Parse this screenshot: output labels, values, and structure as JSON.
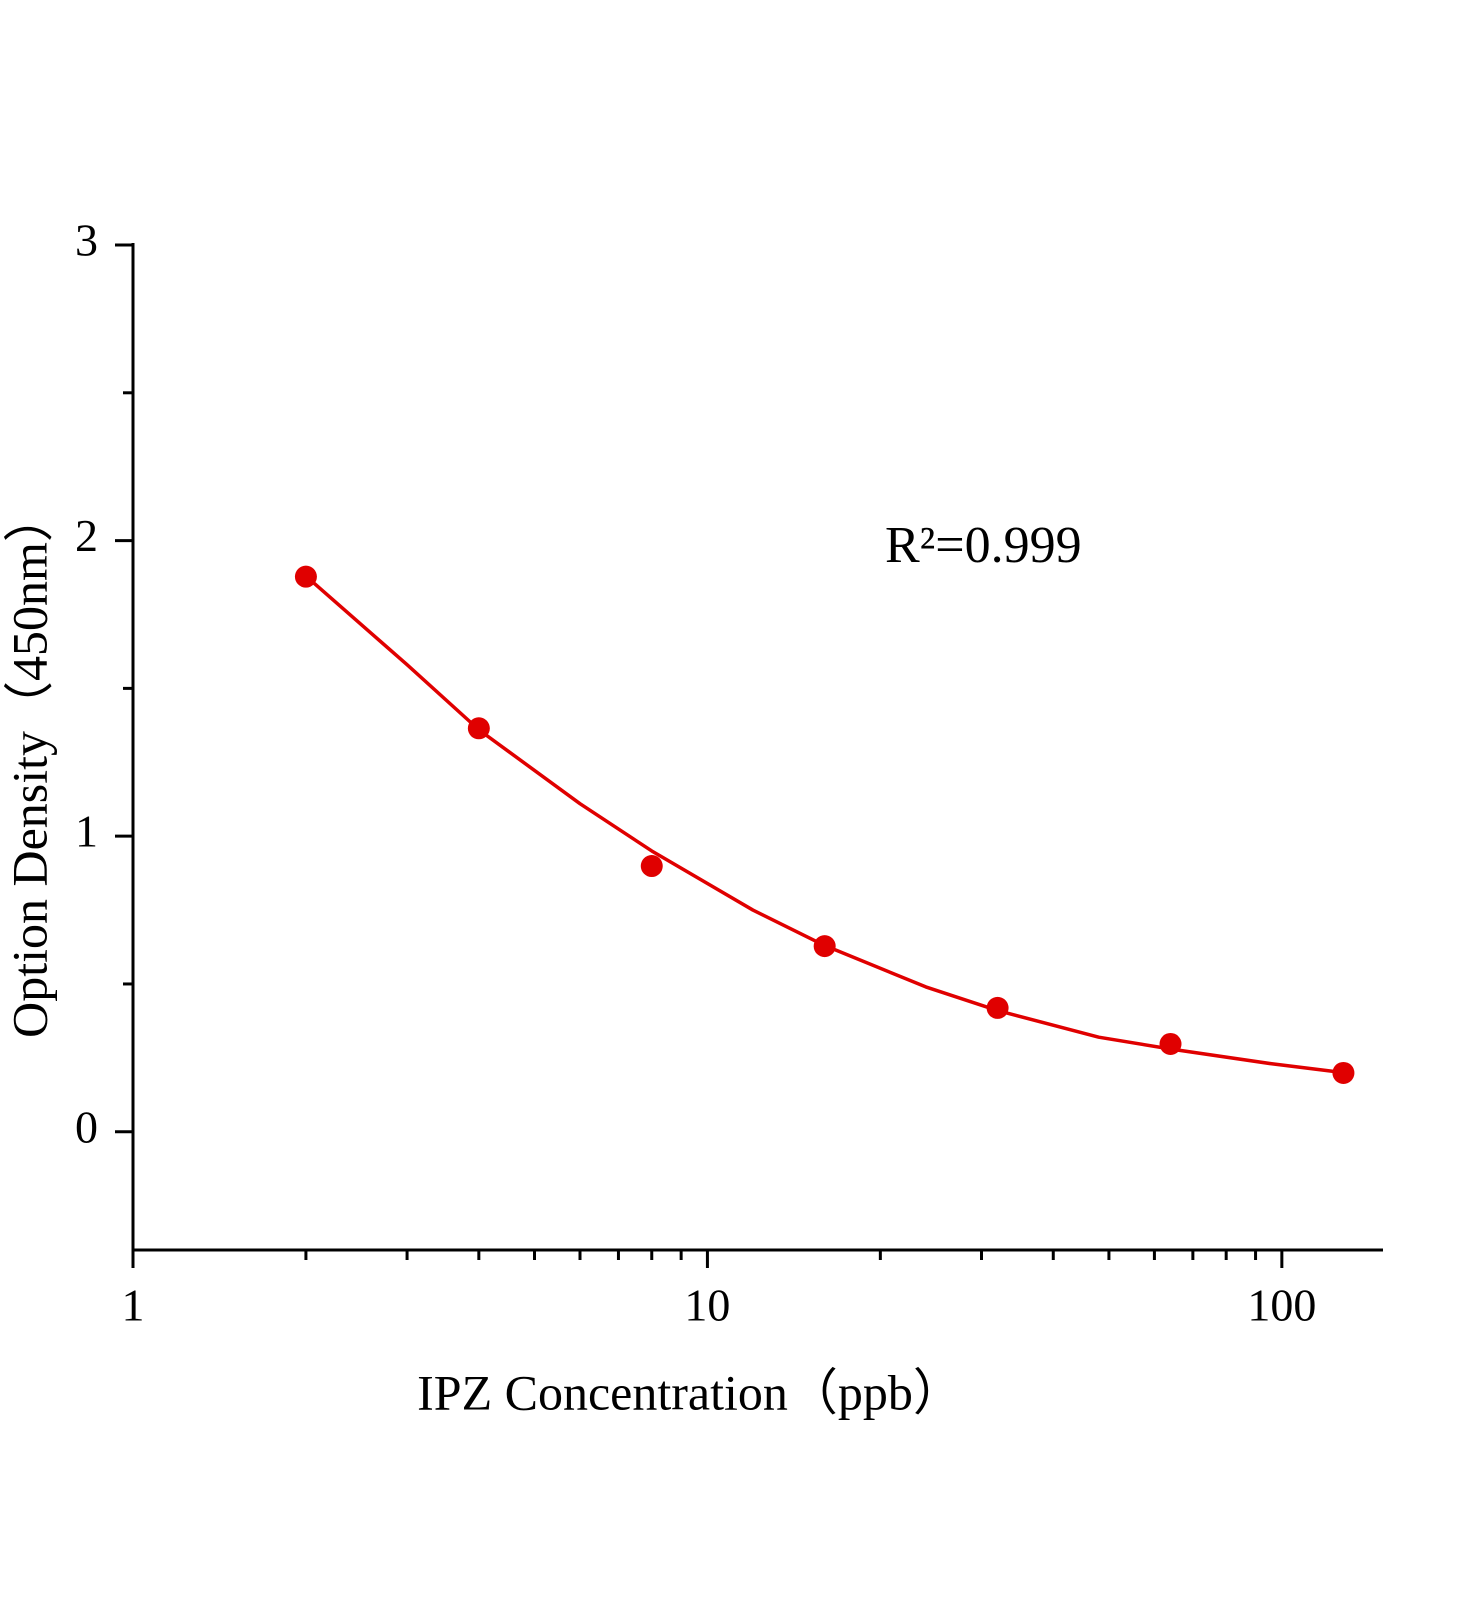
{
  "chart_data": {
    "type": "scatter",
    "xlabel": "IPZ Concentration（ppb）",
    "ylabel": "Option Density（450nm）",
    "annotation": "R²=0.999",
    "x": [
      2,
      4,
      8,
      16,
      32,
      64,
      128
    ],
    "series": [
      {
        "color": "#e00000",
        "values": [
          1.878,
          1.365,
          0.899,
          0.628,
          0.419,
          0.297,
          0.199
        ]
      }
    ],
    "fit": {
      "color": "#e00000",
      "x": [
        2,
        3,
        4,
        6,
        8,
        12,
        16,
        24,
        32,
        48,
        64,
        96,
        128
      ],
      "values": [
        1.88,
        1.58,
        1.36,
        1.11,
        0.95,
        0.75,
        0.63,
        0.49,
        0.41,
        0.32,
        0.28,
        0.23,
        0.2
      ]
    },
    "xscale": "log",
    "xlim": [
      1,
      150
    ],
    "xticks": [
      1,
      10,
      100
    ],
    "xminorticks": [
      2,
      3,
      4,
      5,
      6,
      7,
      8,
      9,
      20,
      30,
      40,
      50,
      60,
      70,
      80,
      90
    ],
    "ylim": [
      -0.4,
      3
    ],
    "yticks": [
      0,
      1,
      2,
      3
    ],
    "yminorticks": [
      0.5,
      1.5,
      2.5
    ]
  }
}
